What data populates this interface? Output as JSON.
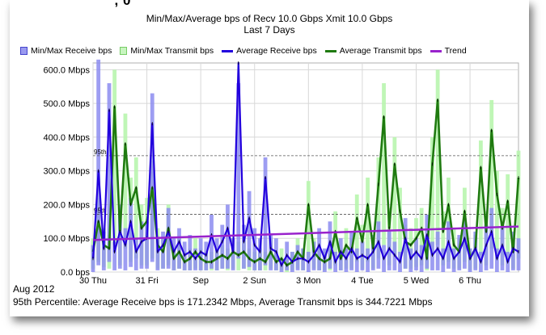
{
  "header": {
    "cut_title": "' ' , 0",
    "title": "Min/Max/Average bps of    Recv 10.0 Gbps   Xmit 10.0 Gbps",
    "subtitle": "Last 7 Days"
  },
  "legend": [
    {
      "label": "Min/Max Receive bps",
      "kind": "box",
      "fill": "#9a9af0",
      "border": "#4444cc"
    },
    {
      "label": "Min/Max Transmit bps",
      "kind": "box",
      "fill": "#c8f5c0",
      "border": "#77cc66"
    },
    {
      "label": "Average Receive bps",
      "kind": "line",
      "color": "#2200dd"
    },
    {
      "label": "Average Transmit bps",
      "kind": "line",
      "color": "#1f7a10"
    },
    {
      "label": "Trend",
      "kind": "line",
      "color": "#9922cc"
    }
  ],
  "footer": {
    "month_label": "Aug 2012",
    "percentile_text": "95th Percentile: Average Receive bps is 171.2342  Mbps, Average Transmit bps is 344.7221  Mbps"
  },
  "colors": {
    "recv_band": "#8c8cf0",
    "xmit_band": "#b8f5ae",
    "recv_avg": "#2200dd",
    "xmit_avg": "#1f7a10",
    "trend": "#9922cc",
    "grid": "#d8d8d8"
  },
  "chart_data": {
    "type": "line",
    "title": "Min/Max/Average bps of    Recv 10.0 Gbps   Xmit 10.0 Gbps",
    "subtitle": "Last 7 Days",
    "xlabel": "",
    "ylabel": "",
    "y_unit": "Mbps",
    "ylim": [
      0,
      620
    ],
    "y_ticks": [
      {
        "value": 0,
        "label": "0.0 bps"
      },
      {
        "value": 100,
        "label": "100.0 Mbps"
      },
      {
        "value": 200,
        "label": "200.0 Mbps"
      },
      {
        "value": 300,
        "label": "300.0 Mbps"
      },
      {
        "value": 400,
        "label": "400.0 Mbps"
      },
      {
        "value": 500,
        "label": "500.0 Mbps"
      },
      {
        "value": 600,
        "label": "600.0 Mbps"
      }
    ],
    "xlim": [
      0,
      7.9
    ],
    "x_ticks": [
      {
        "value": 0,
        "label": "30 Thu"
      },
      {
        "value": 1,
        "label": "31 Fri"
      },
      {
        "value": 2,
        "label": "Sep"
      },
      {
        "value": 3,
        "label": "2 Sun"
      },
      {
        "value": 4,
        "label": "3 Mon"
      },
      {
        "value": 5,
        "label": "4 Tue"
      },
      {
        "value": 6,
        "label": "5 Wed"
      },
      {
        "value": 7,
        "label": "6 Thu"
      }
    ],
    "x_unit": "days since 30 Aug 2012 00:00",
    "grid": true,
    "legend_position": "top",
    "percentile_lines": [
      {
        "label": "95th",
        "value": 345,
        "series": "Average Transmit bps"
      },
      {
        "label": "95th",
        "value": 171,
        "series": "Average Receive bps"
      }
    ],
    "series": [
      {
        "name": "Average Receive bps",
        "x": [
          0.0,
          0.1,
          0.2,
          0.3,
          0.4,
          0.5,
          0.6,
          0.7,
          0.8,
          0.9,
          1.0,
          1.1,
          1.2,
          1.3,
          1.4,
          1.5,
          1.6,
          1.7,
          1.8,
          1.9,
          2.0,
          2.1,
          2.2,
          2.3,
          2.4,
          2.5,
          2.6,
          2.7,
          2.8,
          2.9,
          3.0,
          3.1,
          3.2,
          3.3,
          3.4,
          3.5,
          3.6,
          3.7,
          3.8,
          3.9,
          4.0,
          4.1,
          4.2,
          4.3,
          4.4,
          4.5,
          4.6,
          4.7,
          4.8,
          4.9,
          5.0,
          5.1,
          5.2,
          5.3,
          5.4,
          5.5,
          5.6,
          5.7,
          5.8,
          5.9,
          6.0,
          6.1,
          6.2,
          6.3,
          6.4,
          6.5,
          6.6,
          6.7,
          6.8,
          6.9,
          7.0,
          7.1,
          7.2,
          7.3,
          7.4,
          7.5,
          7.6,
          7.7,
          7.8,
          7.9
        ],
        "values": [
          40,
          300,
          70,
          480,
          60,
          120,
          80,
          150,
          60,
          90,
          100,
          440,
          60,
          80,
          120,
          60,
          90,
          50,
          60,
          40,
          60,
          50,
          110,
          60,
          90,
          130,
          60,
          620,
          90,
          160,
          80,
          60,
          280,
          70,
          60,
          20,
          50,
          30,
          40,
          40,
          30,
          50,
          80,
          40,
          90,
          30,
          60,
          40,
          70,
          40,
          50,
          40,
          60,
          90,
          40,
          70,
          50,
          30,
          100,
          40,
          60,
          40,
          110,
          50,
          70,
          40,
          90,
          40,
          60,
          100,
          40,
          70,
          30,
          80,
          120,
          40,
          80,
          30,
          70,
          60
        ]
      },
      {
        "name": "Average Transmit bps",
        "x": [
          0.0,
          0.1,
          0.2,
          0.3,
          0.4,
          0.5,
          0.6,
          0.7,
          0.8,
          0.9,
          1.0,
          1.1,
          1.2,
          1.3,
          1.4,
          1.5,
          1.6,
          1.7,
          1.8,
          1.9,
          2.0,
          2.1,
          2.2,
          2.3,
          2.4,
          2.5,
          2.6,
          2.7,
          2.8,
          2.9,
          3.0,
          3.1,
          3.2,
          3.3,
          3.4,
          3.5,
          3.6,
          3.7,
          3.8,
          3.9,
          4.0,
          4.1,
          4.2,
          4.3,
          4.4,
          4.5,
          4.6,
          4.7,
          4.8,
          4.9,
          5.0,
          5.1,
          5.2,
          5.3,
          5.4,
          5.5,
          5.6,
          5.7,
          5.8,
          5.9,
          6.0,
          6.1,
          6.2,
          6.3,
          6.4,
          6.5,
          6.6,
          6.7,
          6.8,
          6.9,
          7.0,
          7.1,
          7.2,
          7.3,
          7.4,
          7.5,
          7.6,
          7.7,
          7.8,
          7.9
        ],
        "values": [
          60,
          150,
          80,
          70,
          490,
          120,
          380,
          200,
          250,
          130,
          150,
          250,
          80,
          60,
          130,
          40,
          60,
          30,
          40,
          60,
          40,
          30,
          30,
          40,
          50,
          40,
          60,
          50,
          60,
          40,
          30,
          40,
          30,
          60,
          30,
          40,
          20,
          30,
          60,
          40,
          200,
          60,
          40,
          30,
          40,
          120,
          40,
          80,
          60,
          160,
          90,
          200,
          70,
          260,
          460,
          130,
          320,
          180,
          90,
          80,
          100,
          130,
          40,
          320,
          510,
          120,
          200,
          80,
          60,
          180,
          40,
          70,
          310,
          120,
          420,
          230,
          130,
          210,
          60,
          280
        ]
      },
      {
        "name": "Trend",
        "x": [
          0,
          7.9
        ],
        "values": [
          95,
          135
        ]
      },
      {
        "name": "Min/Max Receive bps",
        "type": "area_band",
        "x": [
          0.0,
          0.1,
          0.2,
          0.3,
          0.4,
          0.5,
          0.6,
          0.7,
          0.8,
          0.9,
          1.0,
          1.1,
          1.2,
          1.3,
          1.4,
          1.5,
          1.6,
          1.7,
          1.8,
          1.9,
          2.0,
          2.1,
          2.2,
          2.3,
          2.4,
          2.5,
          2.6,
          2.7,
          2.8,
          2.9,
          3.0,
          3.1,
          3.2,
          3.3,
          3.4,
          3.5,
          3.6,
          3.7,
          3.8,
          3.9,
          4.0,
          4.1,
          4.2,
          4.3,
          4.4,
          4.5,
          4.6,
          4.7,
          4.8,
          4.9,
          5.0,
          5.1,
          5.2,
          5.3,
          5.4,
          5.5,
          5.6,
          5.7,
          5.8,
          5.9,
          6.0,
          6.1,
          6.2,
          6.3,
          6.4,
          6.5,
          6.6,
          6.7,
          6.8,
          6.9,
          7.0,
          7.1,
          7.2,
          7.3,
          7.4,
          7.5,
          7.6,
          7.7,
          7.8,
          7.9
        ],
        "max": [
          80,
          630,
          120,
          560,
          90,
          200,
          130,
          220,
          100,
          150,
          150,
          530,
          100,
          120,
          190,
          100,
          130,
          90,
          110,
          70,
          100,
          90,
          170,
          100,
          140,
          200,
          100,
          560,
          140,
          240,
          130,
          100,
          340,
          110,
          100,
          40,
          90,
          60,
          80,
          70,
          60,
          90,
          130,
          70,
          150,
          60,
          100,
          70,
          120,
          70,
          90,
          70,
          110,
          150,
          80,
          120,
          90,
          60,
          160,
          70,
          100,
          80,
          170,
          90,
          120,
          70,
          150,
          70,
          110,
          160,
          70,
          120,
          60,
          140,
          190,
          70,
          130,
          60,
          120,
          100
        ],
        "min": [
          0,
          20,
          5,
          30,
          5,
          10,
          5,
          15,
          5,
          10,
          10,
          30,
          5,
          10,
          10,
          5,
          10,
          5,
          5,
          5,
          5,
          5,
          10,
          5,
          10,
          10,
          5,
          40,
          10,
          15,
          5,
          5,
          20,
          5,
          5,
          0,
          5,
          0,
          5,
          5,
          0,
          5,
          5,
          0,
          10,
          0,
          5,
          0,
          5,
          0,
          5,
          0,
          5,
          10,
          0,
          5,
          5,
          0,
          10,
          0,
          5,
          0,
          10,
          5,
          5,
          0,
          10,
          0,
          5,
          10,
          0,
          5,
          0,
          5,
          10,
          0,
          5,
          0,
          5,
          5
        ]
      },
      {
        "name": "Min/Max Transmit bps",
        "type": "area_band",
        "x": [
          0.0,
          0.1,
          0.2,
          0.3,
          0.4,
          0.5,
          0.6,
          0.7,
          0.8,
          0.9,
          1.0,
          1.1,
          1.2,
          1.3,
          1.4,
          1.5,
          1.6,
          1.7,
          1.8,
          1.9,
          2.0,
          2.1,
          2.2,
          2.3,
          2.4,
          2.5,
          2.6,
          2.7,
          2.8,
          2.9,
          3.0,
          3.1,
          3.2,
          3.3,
          3.4,
          3.5,
          3.6,
          3.7,
          3.8,
          3.9,
          4.0,
          4.1,
          4.2,
          4.3,
          4.4,
          4.5,
          4.6,
          4.7,
          4.8,
          4.9,
          5.0,
          5.1,
          5.2,
          5.3,
          5.4,
          5.5,
          5.6,
          5.7,
          5.8,
          5.9,
          6.0,
          6.1,
          6.2,
          6.3,
          6.4,
          6.5,
          6.6,
          6.7,
          6.8,
          6.9,
          7.0,
          7.1,
          7.2,
          7.3,
          7.4,
          7.5,
          7.6,
          7.7,
          7.8,
          7.9
        ],
        "max": [
          100,
          220,
          130,
          110,
          600,
          190,
          470,
          280,
          340,
          200,
          220,
          330,
          130,
          100,
          200,
          70,
          100,
          60,
          70,
          100,
          70,
          60,
          60,
          70,
          80,
          70,
          100,
          90,
          100,
          70,
          60,
          70,
          60,
          100,
          60,
          70,
          40,
          60,
          100,
          70,
          270,
          100,
          70,
          60,
          70,
          180,
          70,
          130,
          100,
          230,
          140,
          280,
          110,
          340,
          560,
          190,
          400,
          250,
          140,
          130,
          160,
          190,
          70,
          400,
          600,
          180,
          280,
          130,
          100,
          250,
          70,
          110,
          390,
          180,
          510,
          300,
          190,
          290,
          100,
          360
        ],
        "min": [
          10,
          30,
          15,
          10,
          80,
          20,
          70,
          30,
          40,
          20,
          20,
          40,
          10,
          10,
          20,
          5,
          10,
          5,
          5,
          10,
          5,
          5,
          5,
          5,
          10,
          5,
          10,
          5,
          10,
          5,
          5,
          5,
          5,
          10,
          5,
          5,
          0,
          5,
          10,
          5,
          30,
          10,
          5,
          5,
          5,
          20,
          5,
          10,
          10,
          30,
          10,
          30,
          10,
          40,
          80,
          20,
          50,
          30,
          10,
          10,
          15,
          20,
          5,
          50,
          80,
          20,
          30,
          10,
          10,
          30,
          5,
          10,
          50,
          20,
          70,
          40,
          20,
          30,
          10,
          40
        ]
      }
    ]
  }
}
